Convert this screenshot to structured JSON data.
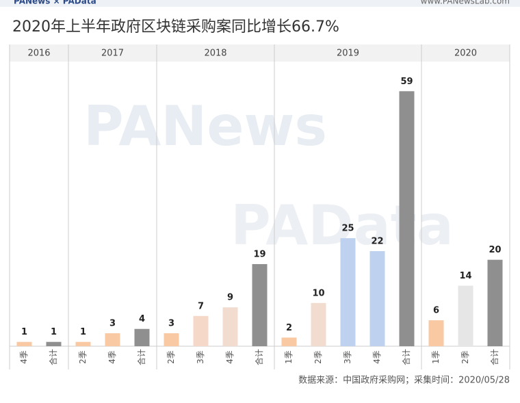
{
  "header": {
    "brand": "PANews × PAData",
    "site": "www.PANewsLab.com"
  },
  "watermarks": [
    "PANews",
    "PAData"
  ],
  "chart_data": {
    "type": "bar",
    "title": "2020年上半年政府区块链采购案同比增长66.7%",
    "ylim": [
      0,
      60
    ],
    "groups": [
      {
        "name": "2016",
        "categories": [
          "4季",
          "合计"
        ],
        "values": [
          1,
          1
        ],
        "colors": [
          "#f8c9a3",
          "#8f8f8f"
        ]
      },
      {
        "name": "2017",
        "categories": [
          "2季",
          "4季",
          "合计"
        ],
        "values": [
          1,
          3,
          4
        ],
        "colors": [
          "#f8c9a3",
          "#f8c9a3",
          "#8f8f8f"
        ]
      },
      {
        "name": "2018",
        "categories": [
          "2季",
          "3季",
          "4季",
          "合计"
        ],
        "values": [
          3,
          7,
          9,
          19
        ],
        "colors": [
          "#f8c9a3",
          "#f5d8c8",
          "#f2dcd0",
          "#8f8f8f"
        ]
      },
      {
        "name": "2019",
        "categories": [
          "1季",
          "2季",
          "3季",
          "4季",
          "合计"
        ],
        "values": [
          2,
          10,
          25,
          22,
          59
        ],
        "colors": [
          "#f8c9a3",
          "#f2dcd0",
          "#bed1ee",
          "#bed1ee",
          "#8f8f8f"
        ]
      },
      {
        "name": "2020",
        "categories": [
          "1季",
          "2季",
          "合计"
        ],
        "values": [
          6,
          14,
          20
        ],
        "colors": [
          "#f8c9a3",
          "#e6e6e6",
          "#8f8f8f"
        ]
      }
    ],
    "source": "数据来源：中国政府采购网；采集时间：2020/05/28"
  }
}
